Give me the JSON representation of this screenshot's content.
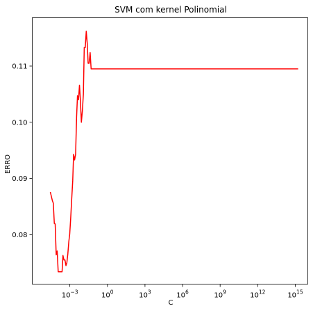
{
  "chart_data": {
    "type": "line",
    "title": "SVM com kernel Polinomial",
    "xlabel": "C",
    "ylabel": "ERRO",
    "xscale": "log",
    "xlim_log10": [
      -6.0,
      16.0
    ],
    "ylim": [
      0.0712,
      0.1186
    ],
    "grid": false,
    "legend": "none",
    "line_color": "#ff0000",
    "x_ticks": [
      {
        "log10": -3,
        "base": "10",
        "exp": "−3"
      },
      {
        "log10": 0,
        "base": "10",
        "exp": "0"
      },
      {
        "log10": 3,
        "base": "10",
        "exp": "3"
      },
      {
        "log10": 6,
        "base": "10",
        "exp": "6"
      },
      {
        "log10": 9,
        "base": "10",
        "exp": "9"
      },
      {
        "log10": 12,
        "base": "10",
        "exp": "12"
      },
      {
        "log10": 15,
        "base": "10",
        "exp": "15"
      }
    ],
    "y_ticks": [
      {
        "value": 0.08,
        "label": "0.08"
      },
      {
        "value": 0.09,
        "label": "0.09"
      },
      {
        "value": 0.1,
        "label": "0.10"
      },
      {
        "value": 0.11,
        "label": "0.11"
      }
    ],
    "series": [
      {
        "x_log10": [
          -4.56,
          -4.4,
          -4.32,
          -4.24,
          -4.17,
          -4.09,
          -4.01,
          -3.93,
          -3.86,
          -3.78,
          -3.7,
          -3.62,
          -3.55,
          -3.47,
          -3.39,
          -3.31,
          -3.24,
          -3.16,
          -3.08,
          -3.01,
          -2.93,
          -2.85,
          -2.77,
          -2.7,
          -2.62,
          -2.54,
          -2.46,
          -2.39,
          -2.31,
          -2.23,
          -2.16,
          -2.08,
          -2.0,
          -1.92,
          -1.85,
          -1.77,
          -1.69,
          -1.61,
          -1.54,
          -1.46,
          -1.38,
          -1.3,
          -1.23,
          -1.15,
          -1.07,
          -1.0,
          -0.92,
          -0.84,
          -0.76,
          -0.69,
          -0.61,
          -0.53,
          -0.45,
          -0.38,
          -0.3,
          -0.22,
          15.23
        ],
        "y": [
          0.0876,
          0.0861,
          0.0856,
          0.082,
          0.0819,
          0.0764,
          0.0771,
          0.0734,
          0.0734,
          0.0734,
          0.0734,
          0.0734,
          0.0763,
          0.0755,
          0.0755,
          0.0745,
          0.075,
          0.0766,
          0.0788,
          0.0801,
          0.083,
          0.0864,
          0.0896,
          0.0943,
          0.0933,
          0.0943,
          0.101,
          0.1047,
          0.104,
          0.1066,
          0.104,
          0.1,
          0.102,
          0.105,
          0.1133,
          0.1133,
          0.1162,
          0.114,
          0.1105,
          0.1105,
          0.1124,
          0.1095,
          0.1095,
          0.1095,
          0.1095,
          0.1095,
          0.1095,
          0.1095,
          0.1095,
          0.1095,
          0.1095,
          0.1095,
          0.1095,
          0.1095,
          0.1095,
          0.1095,
          0.1095
        ]
      }
    ]
  }
}
